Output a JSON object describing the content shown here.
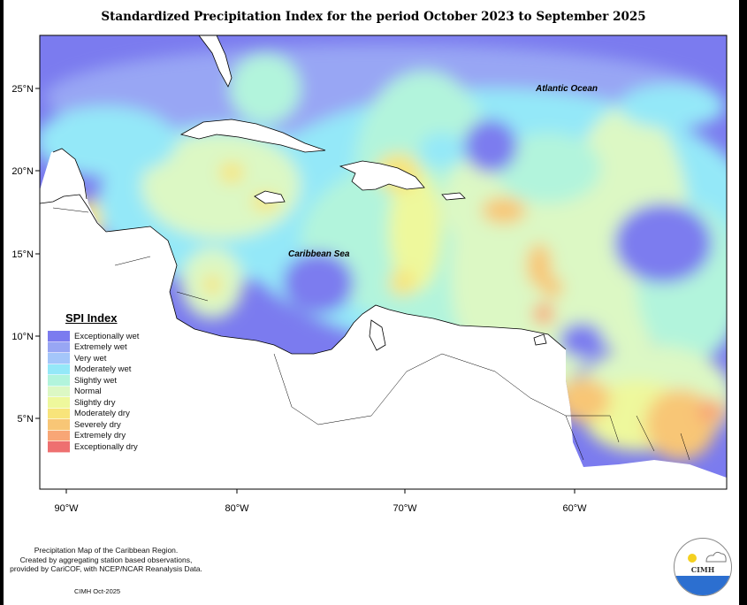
{
  "title": "Standardized Precipitation Index for the period October 2023 to September 2025",
  "map": {
    "labels": {
      "atlantic": "Atlantic Ocean",
      "caribbean": "Caribbean Sea"
    },
    "lon_ticks": [
      "90°W",
      "80°W",
      "70°W",
      "60°W"
    ],
    "lat_ticks": [
      "25°N",
      "20°N",
      "15°N",
      "10°N",
      "5°N"
    ]
  },
  "legend": {
    "title": "SPI Index",
    "items": [
      {
        "label": "Exceptionally wet",
        "color": "#7b7bef"
      },
      {
        "label": "Extremely wet",
        "color": "#98a6f4"
      },
      {
        "label": "Very wet",
        "color": "#a4c6fa"
      },
      {
        "label": "Moderately wet",
        "color": "#94e8f8"
      },
      {
        "label": "Slightly wet",
        "color": "#b2f4dc"
      },
      {
        "label": "Normal",
        "color": "#dcf8c4"
      },
      {
        "label": "Slightly dry",
        "color": "#eef89c"
      },
      {
        "label": "Moderately dry",
        "color": "#f8e47a"
      },
      {
        "label": "Severely dry",
        "color": "#f8c676"
      },
      {
        "label": "Extremely dry",
        "color": "#f8a676"
      },
      {
        "label": "Exceptionally dry",
        "color": "#ee7070"
      }
    ]
  },
  "footer": {
    "line1": "Precipitation Map of the Caribbean Region.",
    "line2": "Created by aggregating station based observations,",
    "line3": "provided by CariCOF, with NCEP/NCAR Reanalysis Data.",
    "stamp": "CIMH Oct-2025"
  },
  "logo": {
    "text": "CIMH"
  }
}
